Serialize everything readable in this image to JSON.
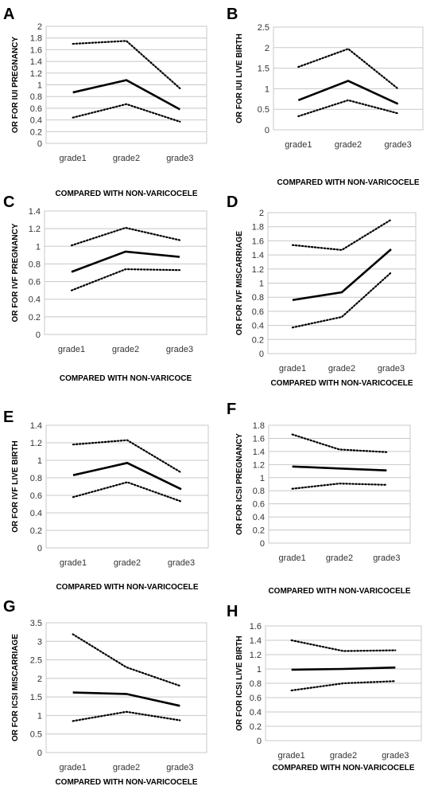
{
  "chart_data": [
    {
      "panel": "A",
      "type": "line",
      "categories": [
        "grade1",
        "grade2",
        "grade3"
      ],
      "series": [
        {
          "style": "solid",
          "values": [
            0.87,
            1.08,
            0.58
          ]
        },
        {
          "style": "dotted",
          "values": [
            1.7,
            1.75,
            0.94
          ]
        },
        {
          "style": "dotted",
          "values": [
            0.44,
            0.67,
            0.37
          ]
        }
      ],
      "ylim": [
        0,
        2
      ],
      "ytick_step": 0.2,
      "yticks": [
        "0",
        "0.2",
        "0.4",
        "0.6",
        "0.8",
        "1",
        "1.2",
        "1.4",
        "1.6",
        "1.8",
        "2"
      ],
      "ylabel": "OR FOR IUI PREGNANCY",
      "xlabel": "COMPARED WITH NON-VARICOCELE",
      "grid": true
    },
    {
      "panel": "B",
      "type": "line",
      "categories": [
        "grade1",
        "grade2",
        "grade3"
      ],
      "series": [
        {
          "style": "solid",
          "values": [
            0.72,
            1.19,
            0.63
          ]
        },
        {
          "style": "dotted",
          "values": [
            1.53,
            1.97,
            1.0
          ]
        },
        {
          "style": "dotted",
          "values": [
            0.33,
            0.72,
            0.4
          ]
        }
      ],
      "ylim": [
        0,
        2.5
      ],
      "ytick_step": 0.5,
      "yticks": [
        "0",
        "0.5",
        "1",
        "1.5",
        "2",
        "2.5"
      ],
      "ylabel": "OR FOR IUI LIVE BIRTH",
      "xlabel": "COMPARED WITH NON-VARICOCELE",
      "grid": true
    },
    {
      "panel": "C",
      "type": "line",
      "categories": [
        "grade1",
        "grade2",
        "grade3"
      ],
      "series": [
        {
          "style": "solid",
          "values": [
            0.71,
            0.94,
            0.88
          ]
        },
        {
          "style": "dotted",
          "values": [
            1.01,
            1.21,
            1.07
          ]
        },
        {
          "style": "dotted",
          "values": [
            0.5,
            0.74,
            0.73
          ]
        }
      ],
      "ylim": [
        0,
        1.4
      ],
      "ytick_step": 0.2,
      "yticks": [
        "0",
        "0.2",
        "0.4",
        "0.6",
        "0.8",
        "1",
        "1.2",
        "1.4"
      ],
      "ylabel": "OR FOR IVF PREGNANCY",
      "xlabel": "COMPARED WITH NON-VARICOCE",
      "grid": true
    },
    {
      "panel": "D",
      "type": "line",
      "categories": [
        "grade1",
        "grade2",
        "grade3"
      ],
      "series": [
        {
          "style": "solid",
          "values": [
            0.76,
            0.87,
            1.48
          ]
        },
        {
          "style": "dotted",
          "values": [
            1.54,
            1.47,
            1.9
          ]
        },
        {
          "style": "dotted",
          "values": [
            0.37,
            0.52,
            1.15
          ]
        }
      ],
      "ylim": [
        0,
        2
      ],
      "ytick_step": 0.2,
      "yticks": [
        "0",
        "0.2",
        "0.4",
        "0.6",
        "0.8",
        "1",
        "1.2",
        "1.4",
        "1.6",
        "1.8",
        "2"
      ],
      "ylabel": "OR FOR IVF MISCARRIAGE",
      "xlabel": "COMPARED WITH NON-VARICOCELE",
      "grid": true
    },
    {
      "panel": "E",
      "type": "line",
      "categories": [
        "grade1",
        "grade2",
        "grade3"
      ],
      "series": [
        {
          "style": "solid",
          "values": [
            0.83,
            0.97,
            0.67
          ]
        },
        {
          "style": "dotted",
          "values": [
            1.18,
            1.23,
            0.86
          ]
        },
        {
          "style": "dotted",
          "values": [
            0.58,
            0.75,
            0.53
          ]
        }
      ],
      "ylim": [
        0,
        1.4
      ],
      "ytick_step": 0.2,
      "yticks": [
        "0",
        "0.2",
        "0.4",
        "0.6",
        "0.8",
        "1",
        "1.2",
        "1.4"
      ],
      "ylabel": "OR FOR IVF LIVE BIRTH",
      "xlabel": "COMPARED WITH NON-VARICOCELE",
      "grid": true
    },
    {
      "panel": "F",
      "type": "line",
      "categories": [
        "grade1",
        "grade2",
        "grade3"
      ],
      "series": [
        {
          "style": "solid",
          "values": [
            1.17,
            1.14,
            1.11
          ]
        },
        {
          "style": "dotted",
          "values": [
            1.66,
            1.43,
            1.39
          ]
        },
        {
          "style": "dotted",
          "values": [
            0.83,
            0.91,
            0.89
          ]
        }
      ],
      "ylim": [
        0,
        1.8
      ],
      "ytick_step": 0.2,
      "yticks": [
        "0",
        "0.2",
        "0.4",
        "0.6",
        "0.8",
        "1",
        "1.2",
        "1.4",
        "1.6",
        "1.8"
      ],
      "ylabel": "OR FOR ICSI PREGNANCY",
      "xlabel": "COMPARED WITH NON-VARICOCELE",
      "grid": true
    },
    {
      "panel": "G",
      "type": "line",
      "categories": [
        "grade1",
        "grade2",
        "grade3"
      ],
      "series": [
        {
          "style": "solid",
          "values": [
            1.62,
            1.58,
            1.26
          ]
        },
        {
          "style": "dotted",
          "values": [
            3.19,
            2.3,
            1.8
          ]
        },
        {
          "style": "dotted",
          "values": [
            0.85,
            1.1,
            0.87
          ]
        }
      ],
      "ylim": [
        0,
        3.5
      ],
      "ytick_step": 0.5,
      "yticks": [
        "0",
        "0.5",
        "1",
        "1.5",
        "2",
        "2.5",
        "3",
        "3.5"
      ],
      "ylabel": "OR FOR ICSI MISCARRIAGE",
      "xlabel": "COMPARED WITH NON-VARICOCELE",
      "grid": true
    },
    {
      "panel": "H",
      "type": "line",
      "categories": [
        "grade1",
        "grade2",
        "grade3"
      ],
      "series": [
        {
          "style": "solid",
          "values": [
            0.99,
            1.0,
            1.02
          ]
        },
        {
          "style": "dotted",
          "values": [
            1.4,
            1.25,
            1.26
          ]
        },
        {
          "style": "dotted",
          "values": [
            0.7,
            0.8,
            0.83
          ]
        }
      ],
      "ylim": [
        0,
        1.6
      ],
      "ytick_step": 0.2,
      "yticks": [
        "0",
        "0.2",
        "0.4",
        "0.6",
        "0.8",
        "1",
        "1.2",
        "1.4",
        "1.6"
      ],
      "ylabel": "OR FOR ICSI LIVE BIRTH",
      "xlabel": "COMPARED WITH NON-VARICOCELE",
      "grid": true
    }
  ]
}
